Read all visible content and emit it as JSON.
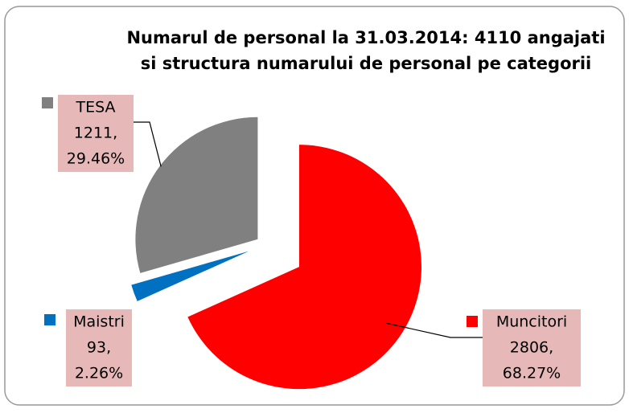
{
  "chart_data": {
    "type": "pie",
    "title": [
      "Numarul de personal la 31.03.2014: 4110 angajati",
      "si structura numarului de personal pe categorii"
    ],
    "categories": [
      "Muncitori",
      "Maistri",
      "TESA"
    ],
    "values": [
      2806,
      93,
      1211
    ],
    "value_labels": [
      "2806,",
      "93,",
      "1211,"
    ],
    "percentages": [
      68.27,
      2.26,
      29.46
    ],
    "percentage_labels": [
      "68.27%",
      "2.26%",
      "29.46%"
    ],
    "colors": [
      "#ff0000",
      "#0070c0",
      "#808080"
    ]
  }
}
